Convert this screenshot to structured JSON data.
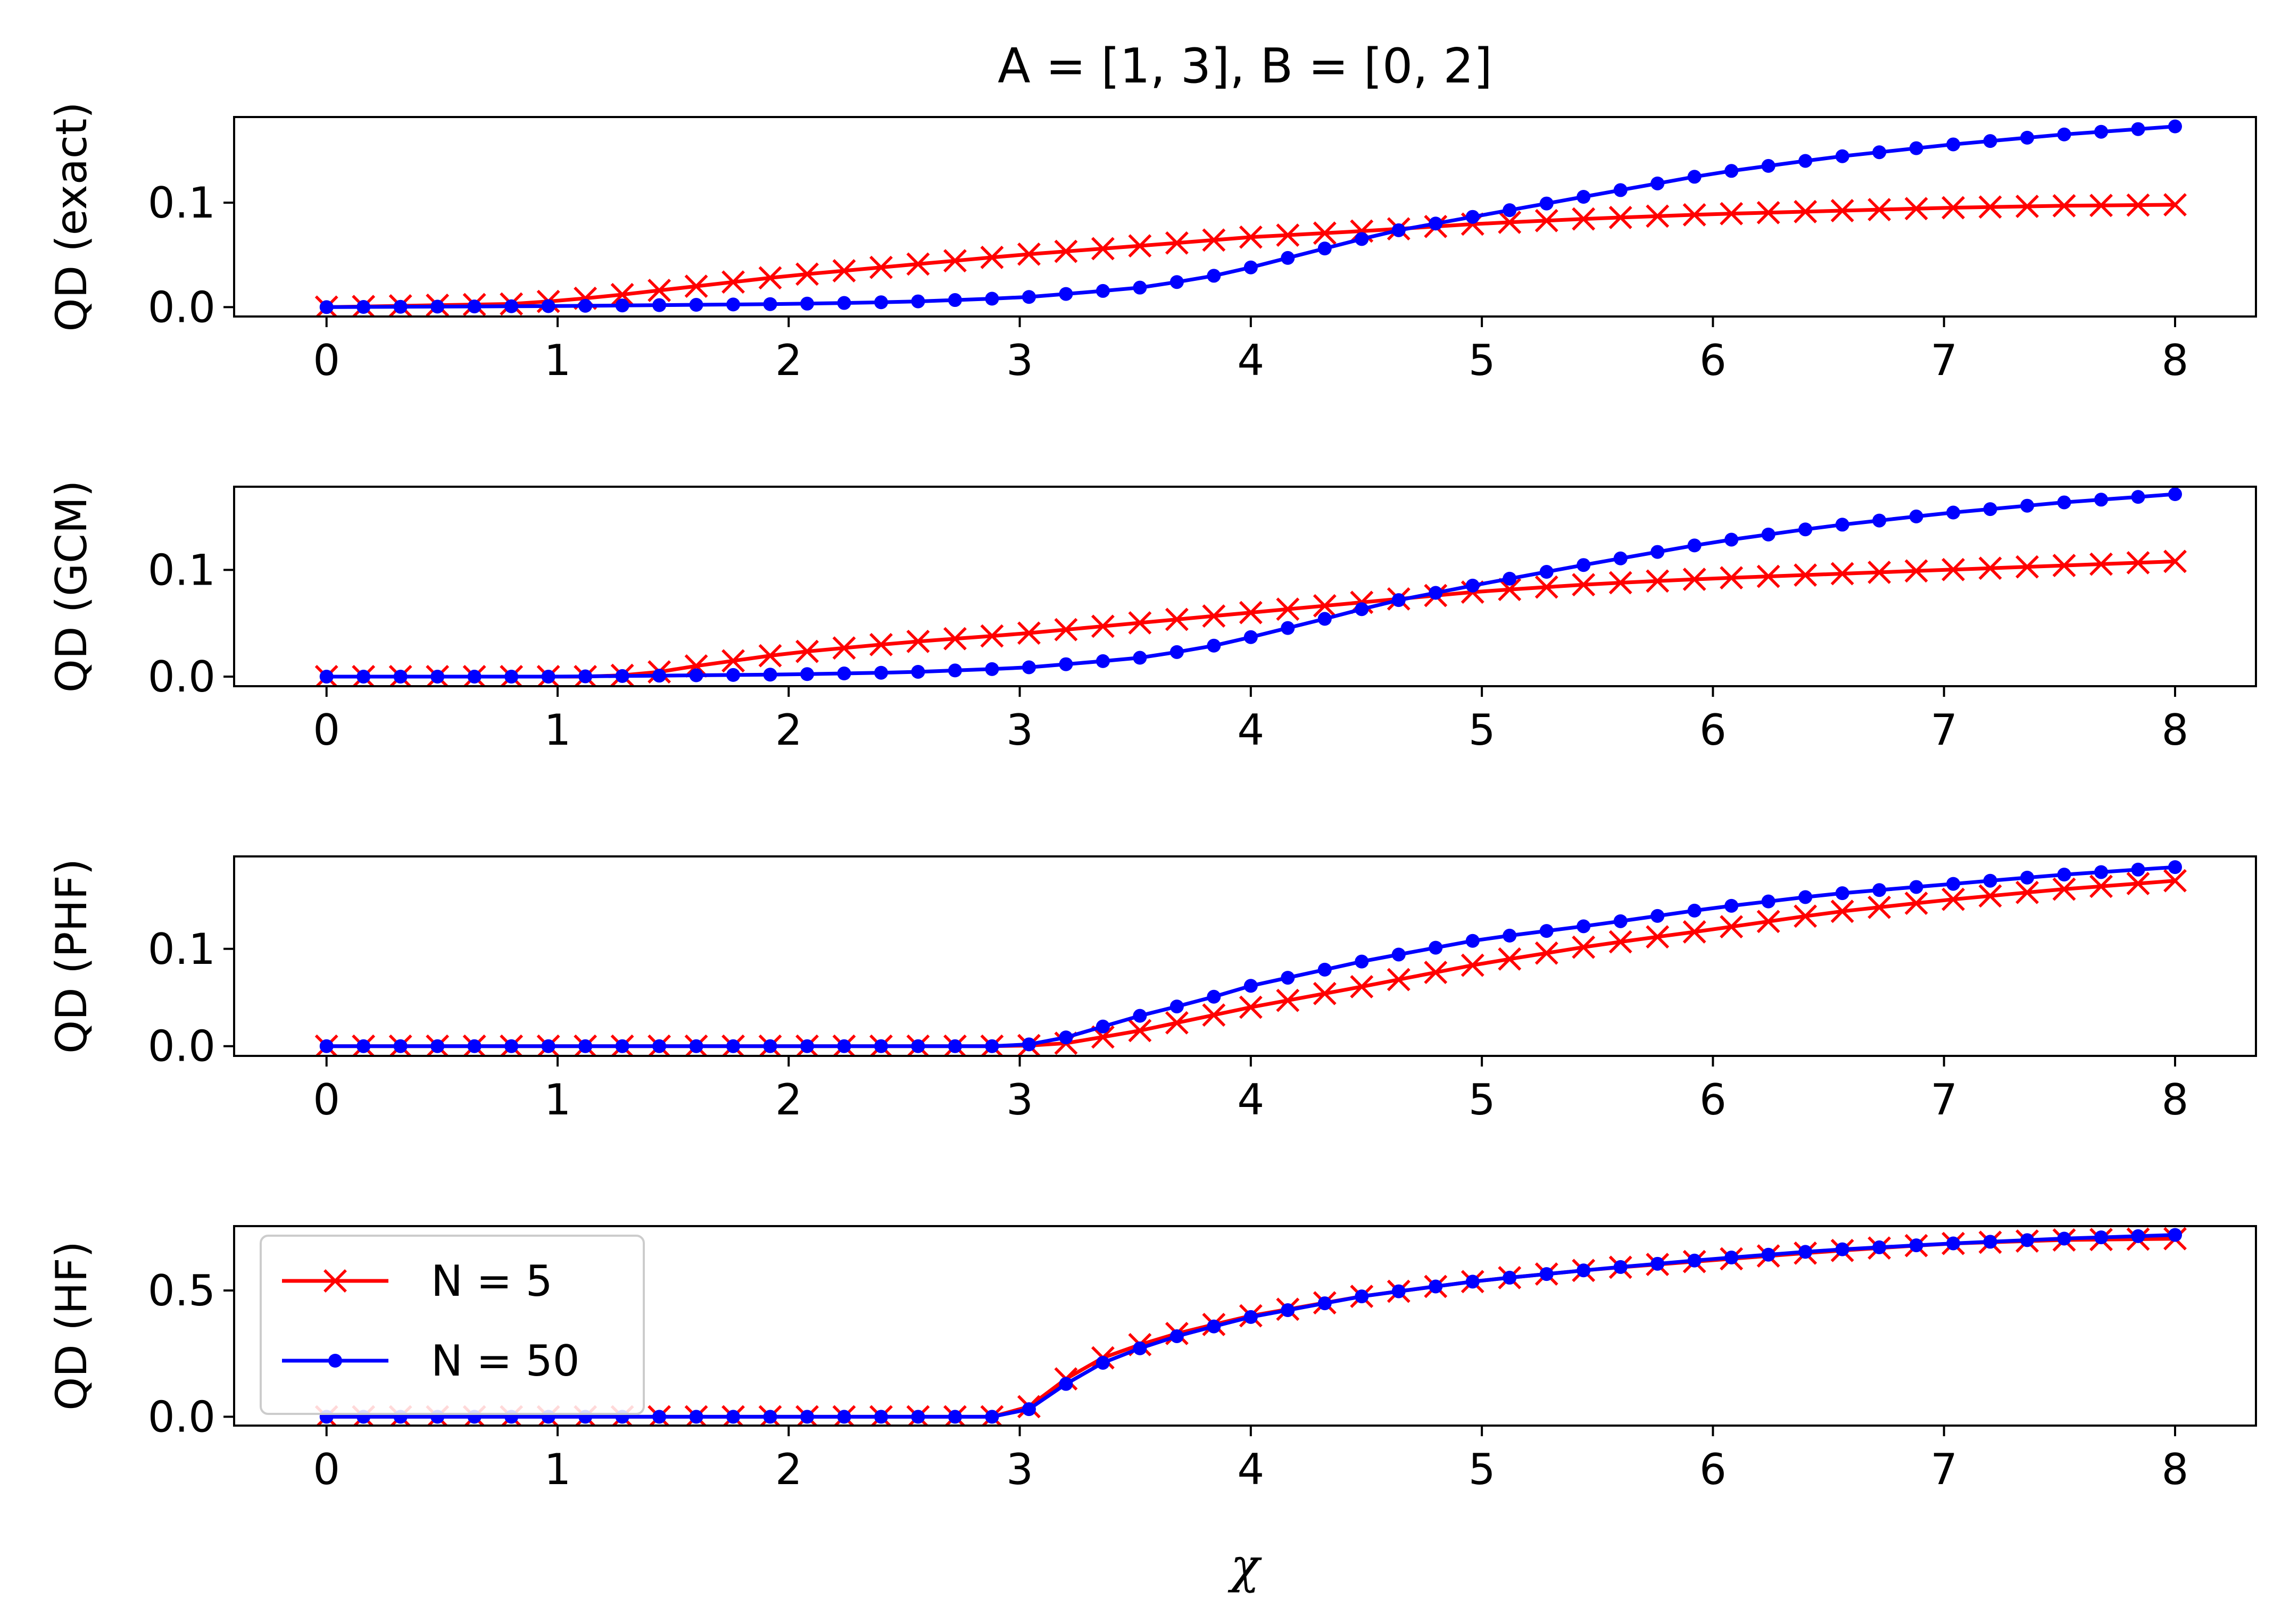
{
  "figure": {
    "title": "A = [1, 3], B = [0, 2]",
    "xlabel": "χ"
  },
  "chart_data": [
    {
      "type": "line",
      "ylabel": "QD (exact)",
      "xlim": [
        -0.4,
        8.35
      ],
      "ylim": [
        -0.009,
        0.182
      ],
      "xticks": [
        0,
        1,
        2,
        3,
        4,
        5,
        6,
        7,
        8
      ],
      "yticks": [
        0.0,
        0.1
      ],
      "ytick_labels": [
        "0.0",
        "0.1"
      ],
      "x_range": [
        0,
        8
      ],
      "n_points": 51,
      "series": [
        {
          "name": "N = 5",
          "color": "#ff0000",
          "marker": "x",
          "x_key": [
            0,
            0.8,
            1,
            1.2,
            1.6,
            2,
            2.4,
            3,
            3.6,
            4,
            4.5,
            5,
            5.5,
            6,
            6.5,
            7,
            7.5,
            8
          ],
          "y_key": [
            0,
            0.003,
            0.006,
            0.01,
            0.02,
            0.03,
            0.038,
            0.05,
            0.06,
            0.067,
            0.073,
            0.08,
            0.085,
            0.089,
            0.092,
            0.095,
            0.097,
            0.098
          ]
        },
        {
          "name": "N = 50",
          "color": "#0000ff",
          "marker": "dot",
          "x_key": [
            0,
            1,
            2,
            2.5,
            3,
            3.5,
            3.8,
            4,
            4.3,
            4.6,
            5,
            5.5,
            6,
            6.5,
            7,
            7.5,
            8
          ],
          "y_key": [
            0,
            0.001,
            0.003,
            0.005,
            0.009,
            0.018,
            0.028,
            0.038,
            0.055,
            0.072,
            0.088,
            0.108,
            0.128,
            0.143,
            0.155,
            0.165,
            0.173
          ]
        }
      ]
    },
    {
      "type": "line",
      "ylabel": "QD (GCM)",
      "xlim": [
        -0.4,
        8.35
      ],
      "ylim": [
        -0.009,
        0.178
      ],
      "xticks": [
        0,
        1,
        2,
        3,
        4,
        5,
        6,
        7,
        8
      ],
      "yticks": [
        0.0,
        0.1
      ],
      "ytick_labels": [
        "0.0",
        "0.1"
      ],
      "x_range": [
        0,
        8
      ],
      "n_points": 51,
      "series": [
        {
          "name": "N = 5",
          "color": "#ff0000",
          "marker": "x",
          "x_key": [
            0,
            1.2,
            1.4,
            1.6,
            2,
            2.5,
            3,
            3.5,
            4,
            4.5,
            5,
            5.5,
            6,
            6.5,
            7,
            7.5,
            8
          ],
          "y_key": [
            0,
            0,
            0.003,
            0.01,
            0.022,
            0.032,
            0.04,
            0.05,
            0.06,
            0.07,
            0.08,
            0.087,
            0.092,
            0.096,
            0.1,
            0.104,
            0.108
          ]
        },
        {
          "name": "N = 50",
          "color": "#0000ff",
          "marker": "dot",
          "x_key": [
            0,
            1,
            2,
            2.5,
            3,
            3.5,
            3.8,
            4,
            4.3,
            4.6,
            5,
            5.5,
            6,
            6.5,
            7,
            7.5,
            8
          ],
          "y_key": [
            0,
            0,
            0.002,
            0.004,
            0.008,
            0.017,
            0.027,
            0.037,
            0.053,
            0.07,
            0.087,
            0.107,
            0.126,
            0.141,
            0.153,
            0.163,
            0.171
          ]
        }
      ]
    },
    {
      "type": "line",
      "ylabel": "QD (PHF)",
      "xlim": [
        -0.4,
        8.35
      ],
      "ylim": [
        -0.01,
        0.195
      ],
      "xticks": [
        0,
        1,
        2,
        3,
        4,
        5,
        6,
        7,
        8
      ],
      "yticks": [
        0.0,
        0.1
      ],
      "ytick_labels": [
        "0.0",
        "0.1"
      ],
      "x_range": [
        0,
        8
      ],
      "n_points": 51,
      "series": [
        {
          "name": "N = 5",
          "color": "#ff0000",
          "marker": "x",
          "x_key": [
            0,
            3,
            3.2,
            3.5,
            3.8,
            4,
            4.5,
            5,
            5.5,
            6,
            6.5,
            7,
            7.5,
            8
          ],
          "y_key": [
            0,
            0,
            0.003,
            0.015,
            0.03,
            0.04,
            0.062,
            0.085,
            0.104,
            0.12,
            0.137,
            0.15,
            0.161,
            0.17
          ]
        },
        {
          "name": "N = 50",
          "color": "#0000ff",
          "marker": "dot",
          "x_key": [
            0,
            3,
            3.2,
            3.5,
            3.8,
            4,
            4.5,
            5,
            5.5,
            6,
            6.5,
            7,
            7.5,
            8
          ],
          "y_key": [
            0,
            0,
            0.009,
            0.03,
            0.048,
            0.062,
            0.088,
            0.11,
            0.125,
            0.142,
            0.156,
            0.166,
            0.176,
            0.184
          ]
        }
      ]
    },
    {
      "type": "line",
      "ylabel": "QD (HF)",
      "xlim": [
        -0.4,
        8.35
      ],
      "ylim": [
        -0.035,
        0.755
      ],
      "xticks": [
        0,
        1,
        2,
        3,
        4,
        5,
        6,
        7,
        8
      ],
      "yticks": [
        0.0,
        0.5
      ],
      "ytick_labels": [
        "0.0",
        "0.5"
      ],
      "x_range": [
        0,
        8
      ],
      "n_points": 51,
      "legend": {
        "position": "upper left",
        "entries": [
          "N = 5",
          "N = 50"
        ]
      },
      "series": [
        {
          "name": "N = 5",
          "color": "#ff0000",
          "marker": "x",
          "x_key": [
            0,
            3,
            3.04,
            3.2,
            3.35,
            3.5,
            3.7,
            4,
            4.5,
            5,
            5.5,
            6,
            6.5,
            7,
            7.5,
            8
          ],
          "y_key": [
            0,
            0,
            0.04,
            0.15,
            0.23,
            0.28,
            0.335,
            0.4,
            0.48,
            0.54,
            0.585,
            0.62,
            0.655,
            0.685,
            0.7,
            0.705
          ]
        },
        {
          "name": "N = 50",
          "color": "#0000ff",
          "marker": "dot",
          "x_key": [
            0,
            3,
            3.04,
            3.2,
            3.35,
            3.5,
            3.7,
            4,
            4.5,
            5,
            5.5,
            6,
            6.5,
            7,
            7.5,
            8
          ],
          "y_key": [
            0,
            0,
            0.03,
            0.13,
            0.21,
            0.265,
            0.325,
            0.395,
            0.48,
            0.54,
            0.585,
            0.625,
            0.66,
            0.685,
            0.705,
            0.72
          ]
        }
      ]
    }
  ]
}
